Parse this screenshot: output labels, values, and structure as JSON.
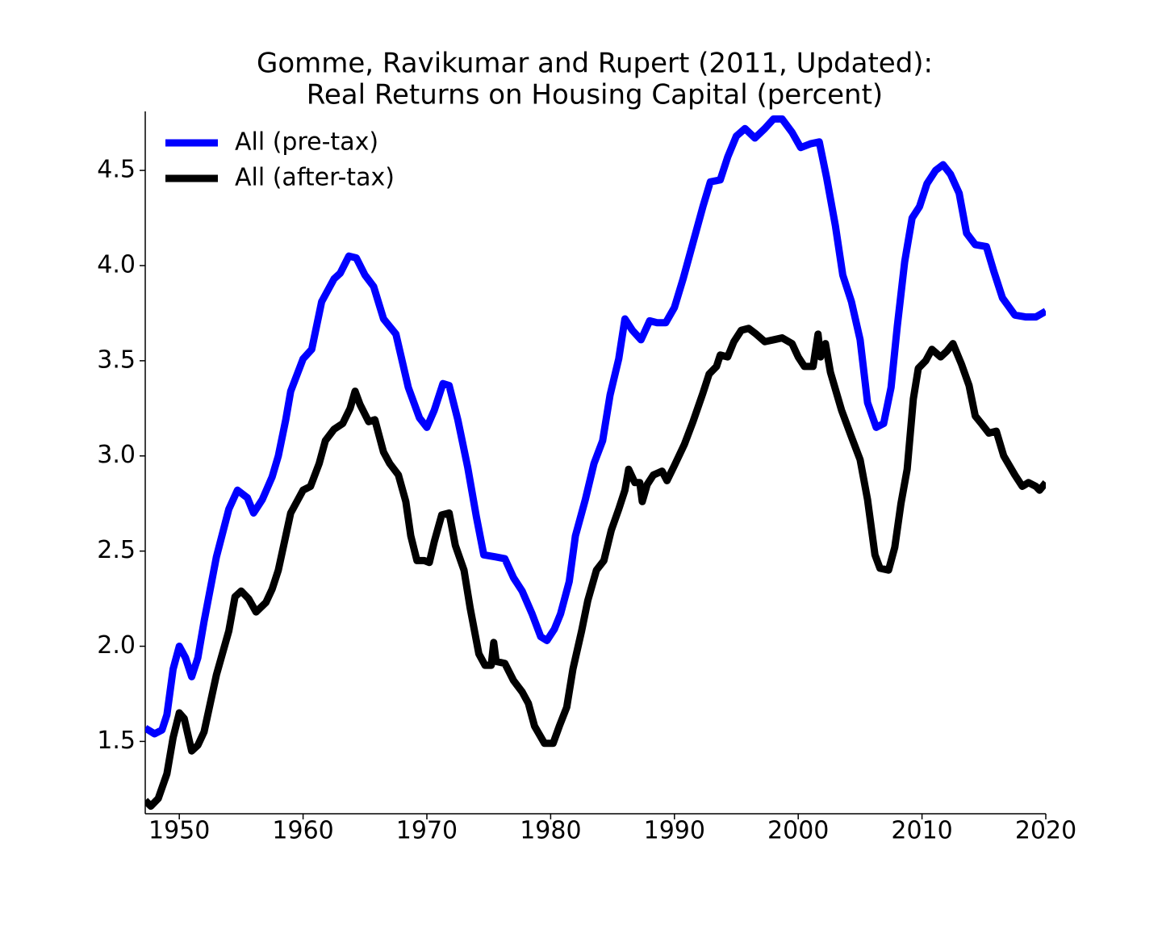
{
  "chart_data": {
    "type": "line",
    "title": [
      "Gomme, Ravikumar and Rupert (2011, Updated):",
      "Real Returns on Housing Capital (percent)"
    ],
    "xlim": [
      1947.25,
      2020
    ],
    "xticks": [
      1950,
      1960,
      1970,
      1980,
      1990,
      2000,
      2010,
      2020
    ],
    "ylim": [
      1.12,
      4.81
    ],
    "yticks": [
      1.5,
      {
        "value": 2,
        "label": "2.0"
      },
      2.5,
      {
        "value": 3,
        "label": "3.0"
      },
      3.5,
      {
        "value": 4,
        "label": "4.0"
      },
      4.5
    ],
    "legend": "upper left",
    "series": [
      {
        "name": "All (pre-tax)",
        "color": "#0000ff",
        "x": [
          1947.25,
          1948,
          1948.6,
          1949,
          1949.5,
          1950,
          1950.5,
          1951,
          1951.5,
          1952,
          1953,
          1954,
          1954.7,
          1955.5,
          1956,
          1956.7,
          1957.5,
          1958,
          1958.6,
          1959,
          1960,
          1960.7,
          1961.5,
          1962.5,
          1963,
          1963.7,
          1964.3,
          1965,
          1965.7,
          1966.5,
          1967.5,
          1968.5,
          1969.4,
          1970,
          1970.6,
          1971.3,
          1971.8,
          1972.5,
          1973.3,
          1974,
          1974.6,
          1975.5,
          1976.3,
          1977,
          1977.7,
          1978.5,
          1979.2,
          1979.7,
          1980.3,
          1980.8,
          1981.5,
          1982,
          1982.8,
          1983.5,
          1984.2,
          1984.8,
          1985.5,
          1986,
          1986.6,
          1987.3,
          1988,
          1988.6,
          1989.3,
          1990,
          1990.7,
          1991.5,
          1992.3,
          1992.9,
          1993.7,
          1994.3,
          1995,
          1995.7,
          1996.5,
          1997.3,
          1998,
          1998.7,
          1999.5,
          2000.2,
          2001,
          2001.7,
          2002.3,
          2003,
          2003.6,
          2004.3,
          2005,
          2005.6,
          2006.3,
          2006.9,
          2007.5,
          2008,
          2008.6,
          2009.2,
          2009.8,
          2010.4,
          2011.1,
          2011.7,
          2012.3,
          2013,
          2013.6,
          2014.3,
          2015.2,
          2015.8,
          2016.5,
          2017.5,
          2018.4,
          2019.2,
          2020
        ],
        "values": [
          1.57,
          1.54,
          1.56,
          1.64,
          1.88,
          2.0,
          1.94,
          1.84,
          1.94,
          2.13,
          2.47,
          2.72,
          2.82,
          2.78,
          2.7,
          2.77,
          2.89,
          3.0,
          3.19,
          3.34,
          3.51,
          3.56,
          3.81,
          3.93,
          3.96,
          4.05,
          4.04,
          3.95,
          3.89,
          3.72,
          3.64,
          3.36,
          3.2,
          3.15,
          3.24,
          3.38,
          3.37,
          3.19,
          2.94,
          2.68,
          2.48,
          2.47,
          2.46,
          2.36,
          2.29,
          2.17,
          2.05,
          2.03,
          2.09,
          2.17,
          2.34,
          2.58,
          2.77,
          2.96,
          3.08,
          3.32,
          3.51,
          3.72,
          3.66,
          3.61,
          3.71,
          3.7,
          3.7,
          3.78,
          3.93,
          4.12,
          4.31,
          4.44,
          4.45,
          4.57,
          4.68,
          4.72,
          4.67,
          4.72,
          4.77,
          4.77,
          4.7,
          4.62,
          4.64,
          4.65,
          4.46,
          4.21,
          3.95,
          3.81,
          3.61,
          3.28,
          3.15,
          3.17,
          3.36,
          3.68,
          4.02,
          4.25,
          4.31,
          4.43,
          4.5,
          4.53,
          4.48,
          4.38,
          4.17,
          4.11,
          4.1,
          3.97,
          3.83,
          3.74,
          3.73,
          3.73,
          3.76
        ]
      },
      {
        "name": "All (after-tax)",
        "color": "#000000",
        "x": [
          1947.25,
          1947.7,
          1948.3,
          1949,
          1949.5,
          1950,
          1950.4,
          1951,
          1951.5,
          1952,
          1953,
          1954,
          1954.5,
          1955,
          1955.6,
          1956.2,
          1957,
          1957.5,
          1958,
          1958.6,
          1959,
          1960,
          1960.6,
          1961.3,
          1961.8,
          1962.5,
          1963.2,
          1963.8,
          1964.2,
          1964.6,
          1965.3,
          1965.8,
          1966.5,
          1967,
          1967.7,
          1968.3,
          1968.7,
          1969.2,
          1969.8,
          1970.2,
          1970.6,
          1971.2,
          1971.8,
          1972.3,
          1973,
          1973.5,
          1974.2,
          1974.7,
          1975.2,
          1975.4,
          1975.6,
          1976.3,
          1977,
          1977.7,
          1978.2,
          1978.7,
          1979.5,
          1980.2,
          1980.7,
          1981.3,
          1981.8,
          1982.5,
          1983,
          1983.7,
          1984.3,
          1984.9,
          1985.5,
          1986,
          1986.3,
          1986.8,
          1987.2,
          1987.4,
          1987.8,
          1988.3,
          1989,
          1989.4,
          1990,
          1990.8,
          1991.5,
          1992.3,
          1992.8,
          1993.4,
          1993.7,
          1994.3,
          1994.8,
          1995.4,
          1996,
          1996.6,
          1997.3,
          1998,
          1998.7,
          1999.5,
          2000,
          2000.5,
          2001.2,
          2001.6,
          2001.8,
          2002.2,
          2002.6,
          2003.5,
          2004.3,
          2005,
          2005.6,
          2006.2,
          2006.6,
          2007.3,
          2007.8,
          2008.3,
          2008.8,
          2009.3,
          2009.7,
          2010.3,
          2010.8,
          2011.5,
          2012,
          2012.5,
          2013.2,
          2013.8,
          2014.3,
          2014.8,
          2015.4,
          2016,
          2016.6,
          2017.5,
          2018.1,
          2018.6,
          2019.2,
          2019.5,
          2020
        ],
        "values": [
          1.19,
          1.16,
          1.2,
          1.33,
          1.52,
          1.65,
          1.62,
          1.45,
          1.48,
          1.55,
          1.85,
          2.08,
          2.26,
          2.29,
          2.25,
          2.18,
          2.23,
          2.3,
          2.4,
          2.58,
          2.7,
          2.82,
          2.84,
          2.96,
          3.08,
          3.14,
          3.17,
          3.25,
          3.34,
          3.27,
          3.18,
          3.19,
          3.02,
          2.96,
          2.9,
          2.76,
          2.58,
          2.45,
          2.45,
          2.44,
          2.55,
          2.69,
          2.7,
          2.53,
          2.4,
          2.2,
          1.96,
          1.9,
          1.9,
          2.02,
          1.92,
          1.91,
          1.82,
          1.76,
          1.7,
          1.58,
          1.49,
          1.49,
          1.58,
          1.68,
          1.88,
          2.08,
          2.24,
          2.4,
          2.45,
          2.61,
          2.72,
          2.82,
          2.93,
          2.86,
          2.86,
          2.76,
          2.85,
          2.9,
          2.92,
          2.87,
          2.95,
          3.06,
          3.18,
          3.33,
          3.43,
          3.47,
          3.53,
          3.52,
          3.6,
          3.66,
          3.67,
          3.64,
          3.6,
          3.61,
          3.62,
          3.59,
          3.52,
          3.47,
          3.47,
          3.64,
          3.52,
          3.59,
          3.44,
          3.24,
          3.1,
          2.98,
          2.77,
          2.48,
          2.41,
          2.4,
          2.52,
          2.75,
          2.93,
          3.3,
          3.46,
          3.5,
          3.56,
          3.52,
          3.55,
          3.59,
          3.48,
          3.37,
          3.21,
          3.17,
          3.12,
          3.13,
          3.0,
          2.9,
          2.84,
          2.86,
          2.84,
          2.82,
          2.86
        ]
      }
    ]
  }
}
